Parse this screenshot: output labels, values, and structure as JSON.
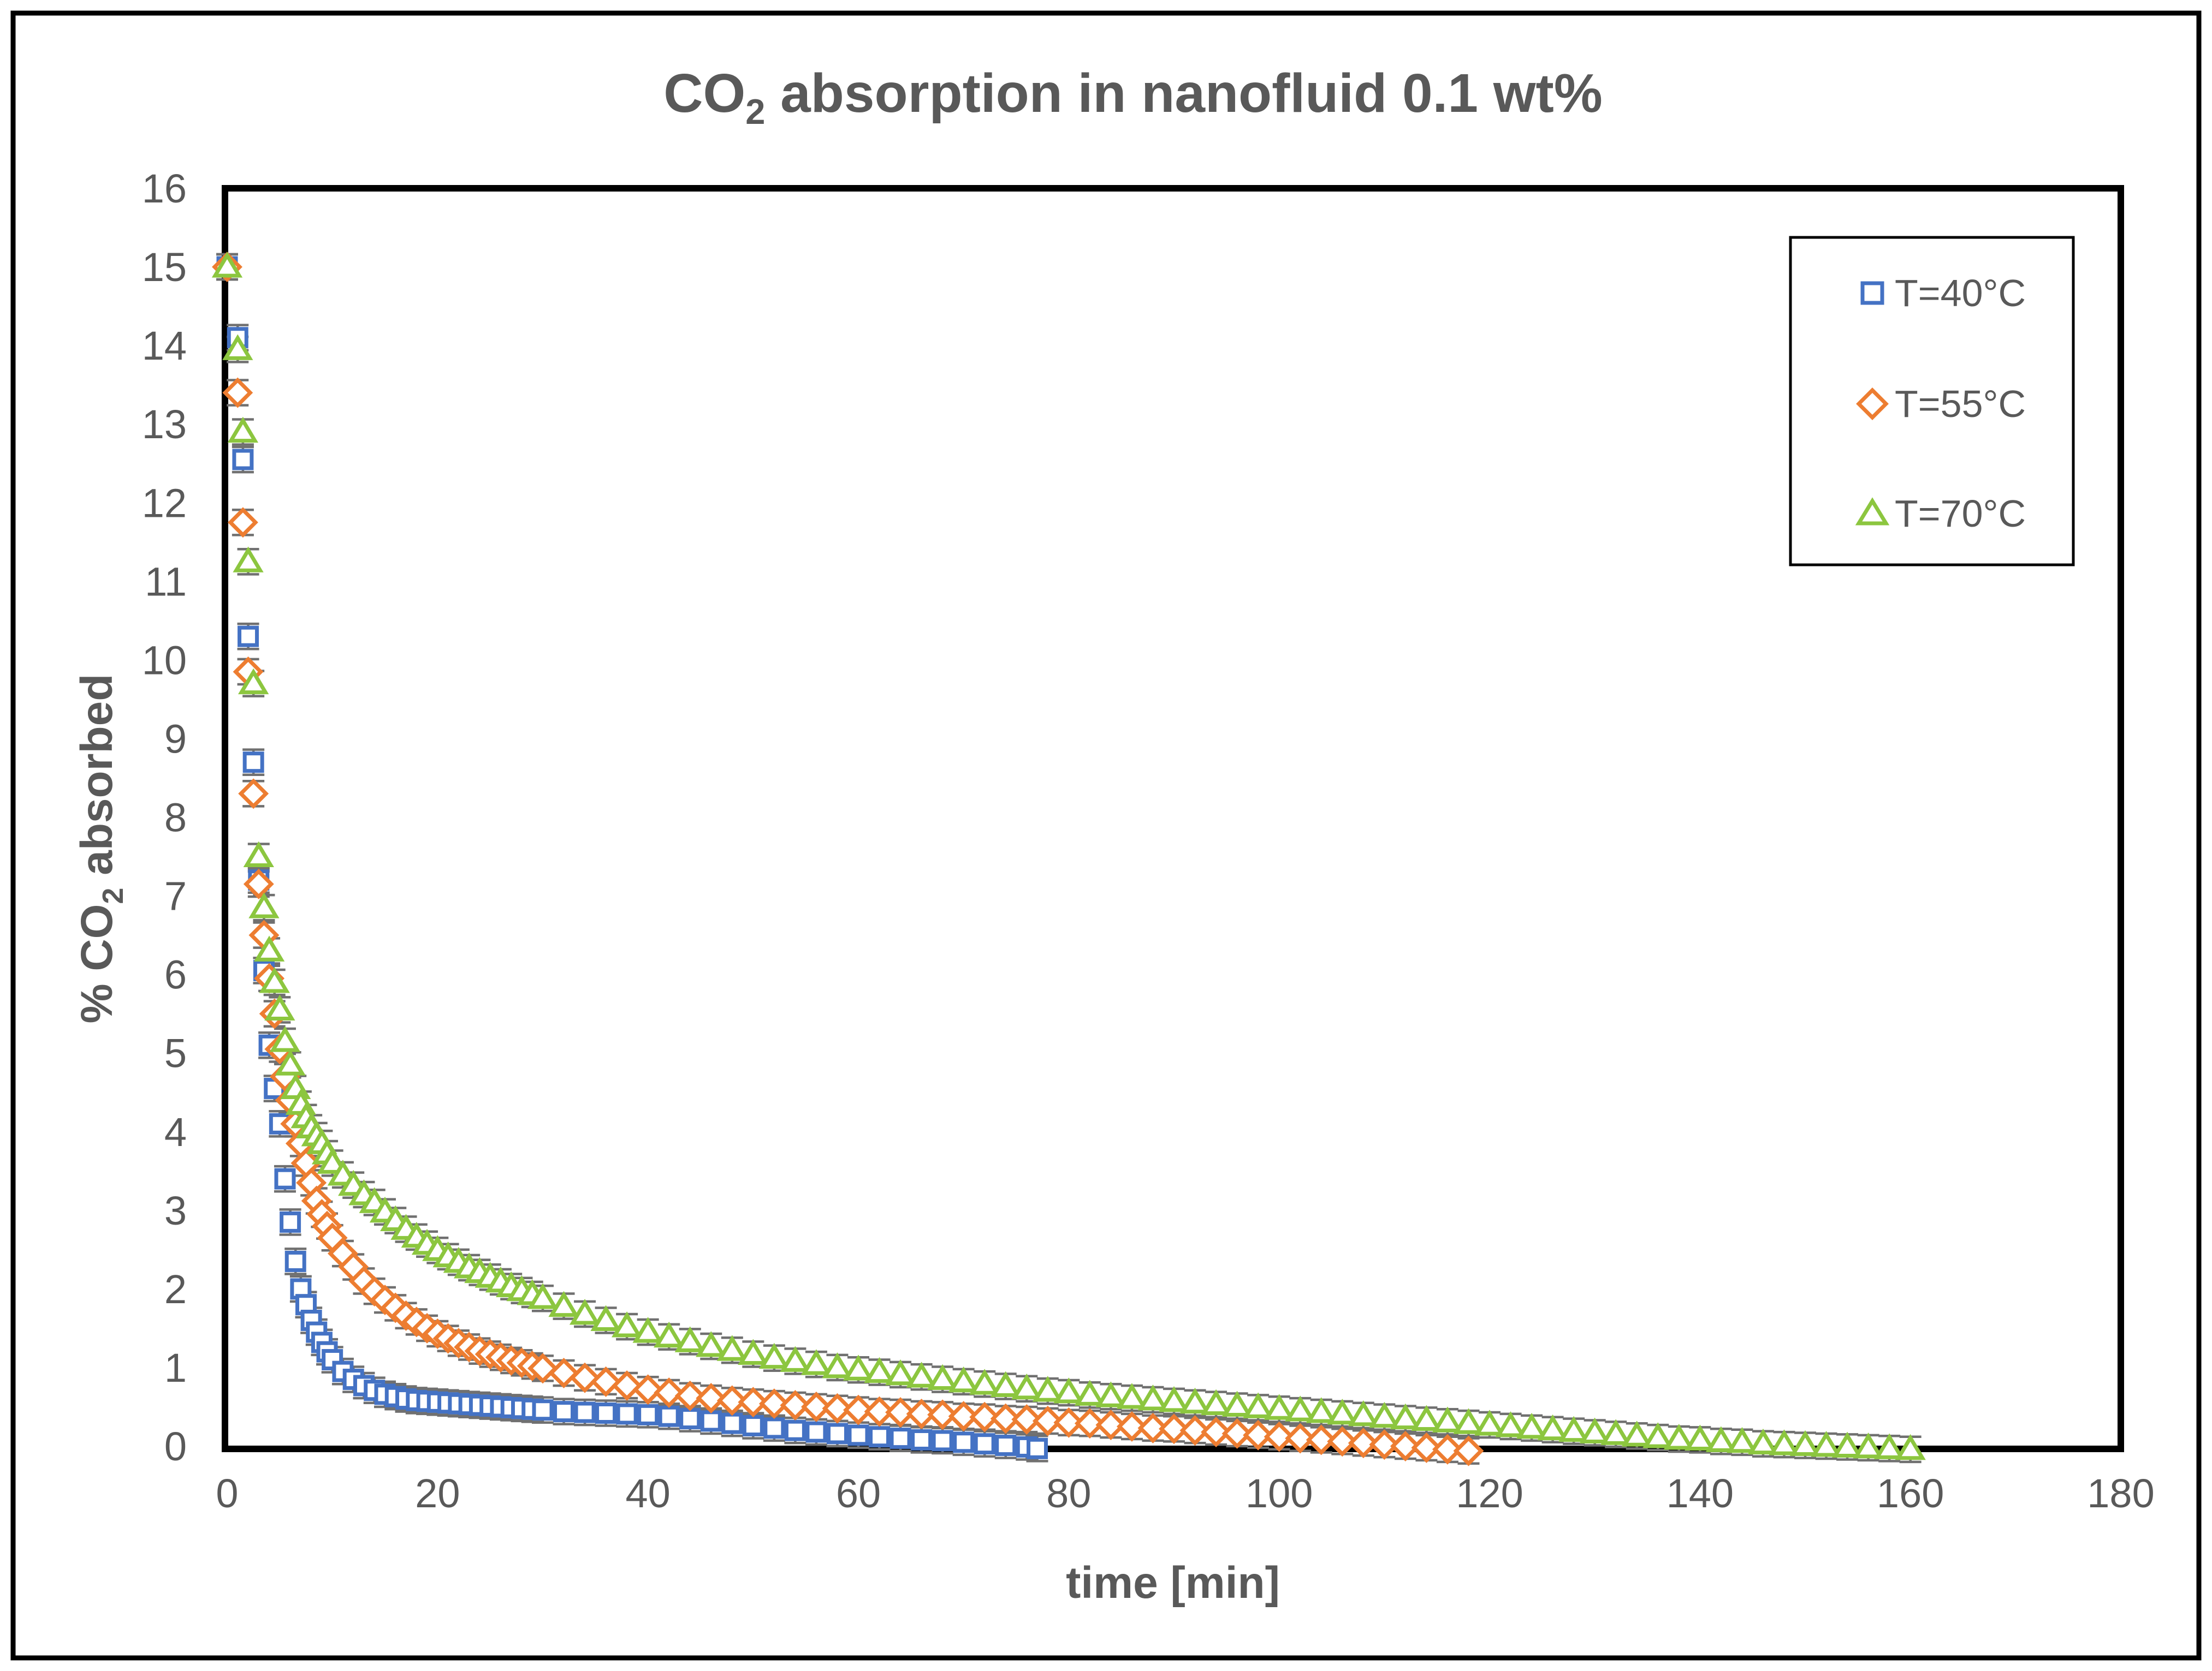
{
  "title": {
    "prefix": "CO",
    "sub": "2",
    "rest": " absorption in nanofluid 0.1 wt%"
  },
  "chart_data": {
    "type": "scatter",
    "title": "CO2 absorption in nanofluid 0.1 wt%",
    "xlabel": "time [min]",
    "ylabel": "% CO2 absorbed",
    "ylabel_parts": {
      "prefix": "% CO",
      "sub": "2",
      "rest": " absorbed"
    },
    "xlim": [
      0,
      180
    ],
    "ylim": [
      0,
      16
    ],
    "x_ticks": [
      0,
      20,
      40,
      60,
      80,
      100,
      120,
      140,
      160,
      180
    ],
    "y_ticks": [
      0,
      1,
      2,
      3,
      4,
      5,
      6,
      7,
      8,
      9,
      10,
      11,
      12,
      13,
      14,
      15,
      16
    ],
    "grid": false,
    "legend_position": "top-right",
    "error_y": 0.16,
    "colors": {
      "axis": "#000000",
      "text": "#595959",
      "error_bar": "#707070",
      "frame": "#000000",
      "background": "#ffffff"
    },
    "series": [
      {
        "name": "T=40°C",
        "marker": "square",
        "color": "#4472C4",
        "points": [
          [
            0,
            15.0
          ],
          [
            1,
            14.1
          ],
          [
            1.5,
            12.55
          ],
          [
            2,
            10.3
          ],
          [
            2.5,
            8.7
          ],
          [
            3,
            7.2
          ],
          [
            3.5,
            6.05
          ],
          [
            4,
            5.1
          ],
          [
            4.5,
            4.55
          ],
          [
            5,
            4.1
          ],
          [
            5.5,
            3.4
          ],
          [
            6,
            2.85
          ],
          [
            6.5,
            2.35
          ],
          [
            7,
            2.0
          ],
          [
            7.5,
            1.8
          ],
          [
            8,
            1.6
          ],
          [
            8.5,
            1.45
          ],
          [
            9,
            1.32
          ],
          [
            9.5,
            1.2
          ],
          [
            10,
            1.1
          ],
          [
            11,
            0.95
          ],
          [
            12,
            0.85
          ],
          [
            13,
            0.77
          ],
          [
            14,
            0.71
          ],
          [
            15,
            0.66
          ],
          [
            16,
            0.63
          ],
          [
            17,
            0.6
          ],
          [
            18,
            0.58
          ],
          [
            19,
            0.57
          ],
          [
            20,
            0.56
          ],
          [
            21,
            0.55
          ],
          [
            22,
            0.54
          ],
          [
            23,
            0.53
          ],
          [
            24,
            0.52
          ],
          [
            25,
            0.51
          ],
          [
            26,
            0.5
          ],
          [
            27,
            0.49
          ],
          [
            28,
            0.48
          ],
          [
            29,
            0.47
          ],
          [
            30,
            0.46
          ],
          [
            32,
            0.44
          ],
          [
            34,
            0.43
          ],
          [
            36,
            0.42
          ],
          [
            38,
            0.41
          ],
          [
            40,
            0.4
          ],
          [
            42,
            0.38
          ],
          [
            44,
            0.35
          ],
          [
            46,
            0.32
          ],
          [
            48,
            0.29
          ],
          [
            50,
            0.26
          ],
          [
            52,
            0.23
          ],
          [
            54,
            0.2
          ],
          [
            56,
            0.18
          ],
          [
            58,
            0.16
          ],
          [
            60,
            0.14
          ],
          [
            62,
            0.12
          ],
          [
            64,
            0.1
          ],
          [
            66,
            0.08
          ],
          [
            68,
            0.07
          ],
          [
            70,
            0.05
          ],
          [
            72,
            0.03
          ],
          [
            74,
            0.01
          ],
          [
            76,
            -0.01
          ],
          [
            77,
            -0.03
          ]
        ]
      },
      {
        "name": "T=55°C",
        "marker": "diamond",
        "color": "#ED7D31",
        "points": [
          [
            0,
            15.0
          ],
          [
            1,
            13.4
          ],
          [
            1.5,
            11.75
          ],
          [
            2,
            9.85
          ],
          [
            2.5,
            8.3
          ],
          [
            3,
            7.15
          ],
          [
            3.5,
            6.5
          ],
          [
            4,
            5.95
          ],
          [
            4.5,
            5.5
          ],
          [
            5,
            5.05
          ],
          [
            5.5,
            4.7
          ],
          [
            6,
            4.4
          ],
          [
            6.5,
            4.1
          ],
          [
            7,
            3.85
          ],
          [
            7.5,
            3.6
          ],
          [
            8,
            3.35
          ],
          [
            8.5,
            3.12
          ],
          [
            9,
            2.95
          ],
          [
            9.5,
            2.8
          ],
          [
            10,
            2.65
          ],
          [
            11,
            2.45
          ],
          [
            12,
            2.28
          ],
          [
            13,
            2.1
          ],
          [
            14,
            1.97
          ],
          [
            15,
            1.86
          ],
          [
            16,
            1.76
          ],
          [
            17,
            1.66
          ],
          [
            18,
            1.58
          ],
          [
            19,
            1.5
          ],
          [
            20,
            1.43
          ],
          [
            21,
            1.37
          ],
          [
            22,
            1.31
          ],
          [
            23,
            1.26
          ],
          [
            24,
            1.21
          ],
          [
            25,
            1.17
          ],
          [
            26,
            1.13
          ],
          [
            27,
            1.09
          ],
          [
            28,
            1.06
          ],
          [
            29,
            1.02
          ],
          [
            30,
            0.99
          ],
          [
            32,
            0.93
          ],
          [
            34,
            0.87
          ],
          [
            36,
            0.82
          ],
          [
            38,
            0.77
          ],
          [
            40,
            0.72
          ],
          [
            42,
            0.68
          ],
          [
            44,
            0.64
          ],
          [
            46,
            0.61
          ],
          [
            48,
            0.58
          ],
          [
            50,
            0.56
          ],
          [
            52,
            0.54
          ],
          [
            54,
            0.52
          ],
          [
            56,
            0.5
          ],
          [
            58,
            0.48
          ],
          [
            60,
            0.46
          ],
          [
            62,
            0.44
          ],
          [
            64,
            0.43
          ],
          [
            66,
            0.41
          ],
          [
            68,
            0.4
          ],
          [
            70,
            0.38
          ],
          [
            72,
            0.37
          ],
          [
            74,
            0.35
          ],
          [
            76,
            0.34
          ],
          [
            78,
            0.32
          ],
          [
            80,
            0.3
          ],
          [
            82,
            0.29
          ],
          [
            84,
            0.27
          ],
          [
            86,
            0.25
          ],
          [
            88,
            0.23
          ],
          [
            90,
            0.22
          ],
          [
            92,
            0.2
          ],
          [
            94,
            0.18
          ],
          [
            96,
            0.16
          ],
          [
            98,
            0.14
          ],
          [
            100,
            0.12
          ],
          [
            102,
            0.1
          ],
          [
            104,
            0.08
          ],
          [
            106,
            0.06
          ],
          [
            108,
            0.04
          ],
          [
            110,
            0.02
          ],
          [
            112,
            0.0
          ],
          [
            114,
            -0.02
          ],
          [
            116,
            -0.04
          ],
          [
            118,
            -0.06
          ]
        ]
      },
      {
        "name": "T=70°C",
        "marker": "triangle",
        "color": "#8CC63F",
        "points": [
          [
            0,
            15.0
          ],
          [
            1,
            13.95
          ],
          [
            1.5,
            12.9
          ],
          [
            2,
            11.25
          ],
          [
            2.5,
            9.7
          ],
          [
            3,
            7.5
          ],
          [
            3.5,
            6.85
          ],
          [
            4,
            6.3
          ],
          [
            4.5,
            5.9
          ],
          [
            5,
            5.55
          ],
          [
            5.5,
            5.15
          ],
          [
            6,
            4.85
          ],
          [
            6.5,
            4.55
          ],
          [
            7,
            4.35
          ],
          [
            7.5,
            4.18
          ],
          [
            8,
            4.05
          ],
          [
            8.5,
            3.95
          ],
          [
            9,
            3.85
          ],
          [
            9.5,
            3.72
          ],
          [
            10,
            3.6
          ],
          [
            11,
            3.45
          ],
          [
            12,
            3.32
          ],
          [
            13,
            3.2
          ],
          [
            14,
            3.1
          ],
          [
            15,
            2.98
          ],
          [
            16,
            2.87
          ],
          [
            17,
            2.76
          ],
          [
            18,
            2.66
          ],
          [
            19,
            2.57
          ],
          [
            20,
            2.49
          ],
          [
            21,
            2.41
          ],
          [
            22,
            2.34
          ],
          [
            23,
            2.27
          ],
          [
            24,
            2.21
          ],
          [
            25,
            2.15
          ],
          [
            26,
            2.09
          ],
          [
            27,
            2.03
          ],
          [
            28,
            1.98
          ],
          [
            29,
            1.93
          ],
          [
            30,
            1.88
          ],
          [
            32,
            1.78
          ],
          [
            34,
            1.68
          ],
          [
            36,
            1.6
          ],
          [
            38,
            1.52
          ],
          [
            40,
            1.45
          ],
          [
            42,
            1.39
          ],
          [
            44,
            1.33
          ],
          [
            46,
            1.27
          ],
          [
            48,
            1.22
          ],
          [
            50,
            1.17
          ],
          [
            52,
            1.12
          ],
          [
            54,
            1.08
          ],
          [
            56,
            1.04
          ],
          [
            58,
            1.0
          ],
          [
            60,
            0.97
          ],
          [
            62,
            0.94
          ],
          [
            64,
            0.91
          ],
          [
            66,
            0.88
          ],
          [
            68,
            0.85
          ],
          [
            70,
            0.82
          ],
          [
            72,
            0.79
          ],
          [
            74,
            0.76
          ],
          [
            76,
            0.73
          ],
          [
            78,
            0.7
          ],
          [
            80,
            0.68
          ],
          [
            82,
            0.65
          ],
          [
            84,
            0.63
          ],
          [
            86,
            0.61
          ],
          [
            88,
            0.59
          ],
          [
            90,
            0.57
          ],
          [
            92,
            0.55
          ],
          [
            94,
            0.53
          ],
          [
            96,
            0.51
          ],
          [
            98,
            0.49
          ],
          [
            100,
            0.47
          ],
          [
            102,
            0.45
          ],
          [
            104,
            0.43
          ],
          [
            106,
            0.41
          ],
          [
            108,
            0.39
          ],
          [
            110,
            0.37
          ],
          [
            112,
            0.35
          ],
          [
            114,
            0.33
          ],
          [
            116,
            0.31
          ],
          [
            118,
            0.29
          ],
          [
            120,
            0.27
          ],
          [
            122,
            0.25
          ],
          [
            124,
            0.23
          ],
          [
            126,
            0.21
          ],
          [
            128,
            0.19
          ],
          [
            130,
            0.17
          ],
          [
            132,
            0.15
          ],
          [
            134,
            0.13
          ],
          [
            136,
            0.11
          ],
          [
            138,
            0.09
          ],
          [
            140,
            0.08
          ],
          [
            142,
            0.06
          ],
          [
            144,
            0.05
          ],
          [
            146,
            0.03
          ],
          [
            148,
            0.02
          ],
          [
            150,
            0.01
          ],
          [
            152,
            0.0
          ],
          [
            154,
            -0.01
          ],
          [
            156,
            -0.02
          ],
          [
            158,
            -0.03
          ],
          [
            160,
            -0.04
          ]
        ]
      }
    ]
  }
}
